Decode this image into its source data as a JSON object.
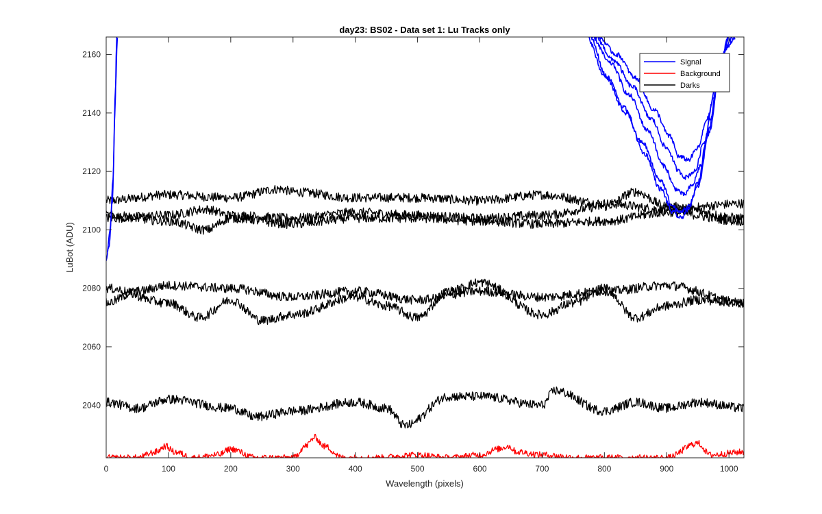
{
  "chart_data": {
    "type": "line",
    "title": "day23: BS02 - Data set 1: Lu Tracks only",
    "xlabel": "Wavelength (pixels)",
    "ylabel": "LuBot (ADU)",
    "xlim": [
      0,
      1024
    ],
    "ylim": [
      2022,
      2166
    ],
    "xticks": [
      0,
      100,
      200,
      300,
      400,
      500,
      600,
      700,
      800,
      900,
      1000
    ],
    "yticks": [
      2040,
      2060,
      2080,
      2100,
      2120,
      2140,
      2160
    ],
    "grid": false,
    "legend_position": "top-right",
    "legend": [
      {
        "label": "Signal",
        "color": "#0000ff"
      },
      {
        "label": "Background",
        "color": "#ff0000"
      },
      {
        "label": "Darks",
        "color": "#000000"
      }
    ],
    "series": [
      {
        "group": "Darks",
        "color": "#000000",
        "x": [
          0,
          100,
          200,
          280,
          300,
          400,
          500,
          600,
          700,
          800,
          900,
          1024
        ],
        "y": [
          2110,
          2112,
          2111,
          2114,
          2113,
          2111,
          2111,
          2110,
          2112,
          2109,
          2107,
          2109
        ]
      },
      {
        "group": "Darks",
        "color": "#000000",
        "x": [
          0,
          100,
          160,
          200,
          300,
          400,
          500,
          600,
          700,
          800,
          850,
          900,
          1024
        ],
        "y": [
          2104,
          2105,
          2107,
          2105,
          2104,
          2106,
          2105,
          2104,
          2105,
          2108,
          2113,
          2108,
          2104
        ]
      },
      {
        "group": "Darks",
        "color": "#000000",
        "x": [
          0,
          100,
          160,
          200,
          300,
          400,
          500,
          600,
          700,
          800,
          900,
          1024
        ],
        "y": [
          2105,
          2103,
          2100,
          2104,
          2102,
          2104,
          2104,
          2103,
          2102,
          2103,
          2106,
          2103
        ]
      },
      {
        "group": "Darks",
        "color": "#000000",
        "x": [
          0,
          50,
          100,
          200,
          300,
          400,
          500,
          600,
          700,
          800,
          900,
          1024
        ],
        "y": [
          2075,
          2079,
          2081,
          2080,
          2077,
          2079,
          2076,
          2079,
          2077,
          2079,
          2081,
          2075
        ]
      },
      {
        "group": "Darks",
        "color": "#000000",
        "x": [
          0,
          100,
          150,
          200,
          250,
          300,
          400,
          450,
          500,
          550,
          600,
          700,
          750,
          800,
          850,
          900,
          950,
          1024
        ],
        "y": [
          2080,
          2075,
          2070,
          2076,
          2069,
          2071,
          2077,
          2074,
          2070,
          2079,
          2082,
          2071,
          2075,
          2080,
          2070,
          2074,
          2076,
          2075
        ]
      },
      {
        "group": "Darks",
        "color": "#000000",
        "x": [
          0,
          50,
          100,
          200,
          240,
          300,
          400,
          450,
          480,
          550,
          600,
          700,
          720,
          800,
          850,
          900,
          950,
          1024
        ],
        "y": [
          2041,
          2039,
          2042,
          2039,
          2036,
          2038,
          2041,
          2039,
          2033,
          2043,
          2043,
          2040,
          2045,
          2038,
          2041,
          2039,
          2041,
          2039
        ]
      },
      {
        "group": "Background",
        "color": "#ff0000",
        "x": [
          0,
          50,
          80,
          95,
          110,
          140,
          180,
          200,
          240,
          300,
          320,
          335,
          350,
          380,
          430,
          500,
          550,
          600,
          630,
          645,
          660,
          700,
          760,
          820,
          900,
          950,
          970,
          1024
        ],
        "y": [
          2022,
          2022,
          2024,
          2026,
          2024,
          2022,
          2023,
          2025,
          2022,
          2022,
          2026,
          2029,
          2026,
          2022,
          2022,
          2023,
          2022,
          2023,
          2025,
          2026,
          2024,
          2023,
          2022,
          2022,
          2022,
          2027,
          2023,
          2024
        ]
      },
      {
        "group": "Signal",
        "color": "#0000ff",
        "x": [
          0,
          5,
          10,
          14,
          17
        ],
        "y": [
          2090,
          2095,
          2110,
          2140,
          2166
        ]
      },
      {
        "group": "Signal",
        "color": "#0000ff",
        "x": [
          2,
          6,
          11,
          15,
          18
        ],
        "y": [
          2093,
          2100,
          2118,
          2148,
          2166
        ]
      },
      {
        "group": "Signal",
        "color": "#0000ff",
        "x": [
          772,
          800,
          830,
          860,
          890,
          910,
          920,
          935,
          950,
          970,
          985,
          1000
        ],
        "y": [
          2166,
          2153,
          2142,
          2130,
          2117,
          2108,
          2106,
          2108,
          2115,
          2135,
          2155,
          2166
        ]
      },
      {
        "group": "Signal",
        "color": "#0000ff",
        "x": [
          780,
          810,
          840,
          870,
          895,
          915,
          928,
          940,
          955,
          970,
          985,
          1000
        ],
        "y": [
          2166,
          2157,
          2146,
          2134,
          2122,
          2114,
          2112,
          2115,
          2122,
          2138,
          2156,
          2166
        ]
      },
      {
        "group": "Signal",
        "color": "#0000ff",
        "x": [
          785,
          815,
          845,
          875,
          900,
          920,
          930,
          945,
          960,
          975,
          990,
          1005
        ],
        "y": [
          2166,
          2158,
          2149,
          2138,
          2128,
          2120,
          2118,
          2120,
          2130,
          2145,
          2160,
          2166
        ]
      },
      {
        "group": "Signal",
        "color": "#0000ff",
        "x": [
          790,
          820,
          850,
          880,
          905,
          920,
          935,
          950,
          965,
          980,
          995,
          1010
        ],
        "y": [
          2166,
          2160,
          2152,
          2141,
          2132,
          2125,
          2124,
          2128,
          2138,
          2150,
          2162,
          2166
        ]
      },
      {
        "group": "Signal",
        "color": "#0000ff",
        "x": [
          776,
          805,
          835,
          865,
          890,
          910,
          922,
          935,
          950,
          965,
          985,
          1000
        ],
        "y": [
          2166,
          2152,
          2140,
          2126,
          2114,
          2106,
          2104,
          2107,
          2116,
          2132,
          2154,
          2166
        ]
      }
    ]
  }
}
